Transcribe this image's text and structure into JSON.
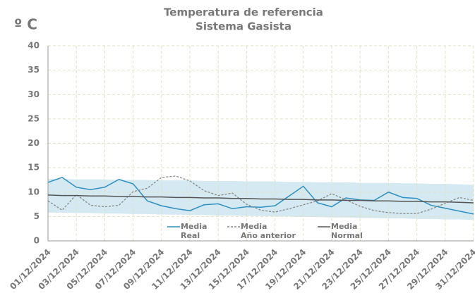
{
  "chart_data": {
    "type": "line",
    "title": "Temperatura de referencia",
    "subtitle": "Sistema Gasista",
    "y_label": "º C",
    "categories": [
      "01/12/2024",
      null,
      "03/12/2024",
      null,
      "05/12/2024",
      null,
      "07/12/2024",
      null,
      "09/12/2024",
      null,
      "11/12/2024",
      null,
      "13/12/2024",
      null,
      "15/12/2024",
      null,
      "17/12/2024",
      null,
      "19/12/2024",
      null,
      "21/12/2024",
      null,
      "23/12/2024",
      null,
      "25/12/2024",
      null,
      "27/12/2024",
      null,
      "29/12/2024",
      null,
      "31/12/2024"
    ],
    "ylim": [
      0,
      40
    ],
    "yticks": [
      0,
      5,
      10,
      15,
      20,
      25,
      30,
      35,
      40
    ],
    "grid": true,
    "band": {
      "color": "#d4e9f2",
      "upper": [
        12.7,
        12.7,
        12.6,
        12.6,
        12.6,
        12.5,
        12.5,
        12.5,
        12.4,
        12.4,
        12.4,
        12.3,
        12.3,
        12.3,
        12.2,
        12.2,
        12.2,
        12.1,
        12.1,
        12.0,
        12.0,
        12.0,
        11.9,
        11.9,
        11.9,
        11.8,
        11.8,
        11.7,
        11.7,
        11.6,
        11.5
      ],
      "lower": [
        5.8,
        5.8,
        5.7,
        5.7,
        5.6,
        5.6,
        5.5,
        5.5,
        5.4,
        5.4,
        5.3,
        5.3,
        5.2,
        5.2,
        5.1,
        5.1,
        5.0,
        5.0,
        4.9,
        4.9,
        4.8,
        4.8,
        4.7,
        4.7,
        4.6,
        4.6,
        4.5,
        4.5,
        4.4,
        4.4,
        4.3
      ]
    },
    "series": [
      {
        "name": "Media Real",
        "color": "#2e8fc0",
        "dash": false,
        "values": [
          12.0,
          13.0,
          11.0,
          10.5,
          11.0,
          12.6,
          11.7,
          8.2,
          7.2,
          6.6,
          6.2,
          7.4,
          7.6,
          6.6,
          7.0,
          6.9,
          7.2,
          9.2,
          11.2,
          7.8,
          7.0,
          8.8,
          8.4,
          8.3,
          10.0,
          8.9,
          8.7,
          7.3,
          6.7,
          6.1,
          5.5
        ]
      },
      {
        "name": "Media Año anterior",
        "color": "#888888",
        "dash": true,
        "values": [
          8.2,
          6.3,
          9.5,
          7.3,
          7.0,
          7.3,
          10.1,
          10.8,
          13.0,
          13.3,
          12.3,
          10.3,
          9.3,
          9.8,
          7.5,
          6.3,
          5.9,
          6.6,
          7.4,
          8.2,
          9.7,
          8.4,
          7.1,
          6.2,
          5.8,
          5.6,
          5.6,
          6.5,
          7.7,
          8.9,
          8.3
        ]
      },
      {
        "name": "Media Normal",
        "color": "#555555",
        "dash": false,
        "values": [
          9.4,
          9.3,
          9.3,
          9.2,
          9.2,
          9.1,
          9.1,
          9.0,
          9.0,
          8.9,
          8.9,
          8.8,
          8.8,
          8.7,
          8.7,
          8.6,
          8.6,
          8.5,
          8.5,
          8.4,
          8.4,
          8.3,
          8.3,
          8.2,
          8.2,
          8.1,
          8.1,
          8.0,
          8.0,
          7.9,
          7.8
        ]
      }
    ]
  }
}
